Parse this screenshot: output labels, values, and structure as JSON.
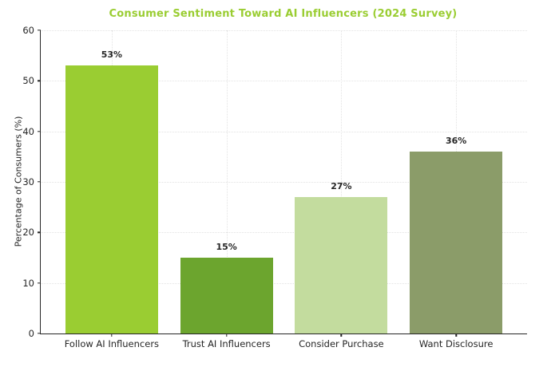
{
  "chart_data": {
    "type": "bar",
    "title": "Consumer Sentiment Toward AI Influencers (2024 Survey)",
    "title_color": "#9ACD32",
    "ylabel": "Percentage of Consumers (%)",
    "xlabel": "",
    "categories": [
      "Follow AI Influencers",
      "Trust AI Influencers",
      "Consider Purchase",
      "Want Disclosure"
    ],
    "values": [
      53,
      15,
      27,
      36
    ],
    "value_labels": [
      "53%",
      "15%",
      "27%",
      "36%"
    ],
    "bar_colors": [
      "#9ACD32",
      "#6CA52E",
      "#C3DC9E",
      "#8B9C69"
    ],
    "ylim": [
      0,
      60
    ],
    "yticks": [
      0,
      10,
      20,
      30,
      40,
      50,
      60
    ],
    "grid": true,
    "legend": "none",
    "axis_color": "#262626",
    "grid_color": "#E3E3E3"
  }
}
